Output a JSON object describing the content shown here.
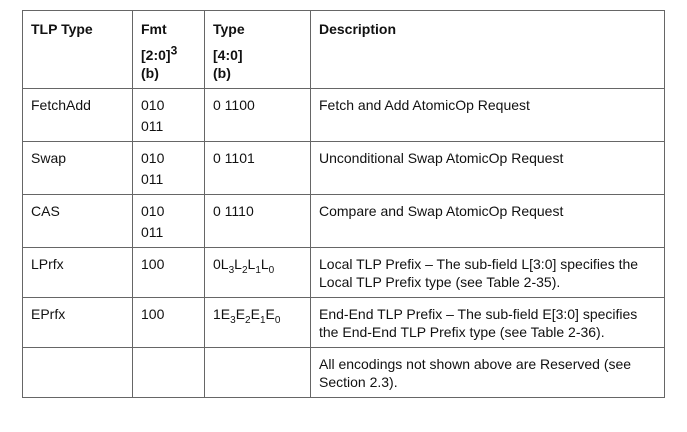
{
  "table": {
    "headers": {
      "tlp_type": "TLP Type",
      "fmt": "Fmt",
      "fmt_bits": "[2:0]",
      "fmt_sup": "3",
      "fmt_unit": "(b)",
      "type": "Type",
      "type_bits": "[4:0]",
      "type_unit": "(b)",
      "description": "Description"
    },
    "rows": [
      {
        "tlp_type": "FetchAdd",
        "fmt": [
          "010",
          "011"
        ],
        "type": "0 1100",
        "description": "Fetch and Add AtomicOp Request"
      },
      {
        "tlp_type": "Swap",
        "fmt": [
          "010",
          "011"
        ],
        "type": "0 1101",
        "description": "Unconditional Swap AtomicOp Request"
      },
      {
        "tlp_type": "CAS",
        "fmt": [
          "010",
          "011"
        ],
        "type": "0 1110",
        "description": "Compare and Swap AtomicOp Request"
      },
      {
        "tlp_type": "LPrfx",
        "fmt": [
          "100"
        ],
        "type_parts": {
          "lead": "0",
          "p1": "L",
          "s1": "3",
          "p2": "L",
          "s2": "2",
          "p3": "L",
          "s3": "1",
          "p4": "L",
          "s4": "0"
        },
        "description": "Local TLP Prefix – The sub-field L[3:0] specifies the Local TLP Prefix type (see Table 2-35)."
      },
      {
        "tlp_type": "EPrfx",
        "fmt": [
          "100"
        ],
        "type_parts": {
          "lead": "1",
          "p1": "E",
          "s1": "3",
          "p2": "E",
          "s2": "2",
          "p3": "E",
          "s3": "1",
          "p4": "E",
          "s4": "0"
        },
        "description": "End-End TLP Prefix – The sub-field E[3:0] specifies the End-End TLP Prefix type (see Table 2-36)."
      },
      {
        "tlp_type": "",
        "fmt": [],
        "type": "",
        "description": "All encodings not shown above are Reserved (see Section 2.3)."
      }
    ]
  }
}
